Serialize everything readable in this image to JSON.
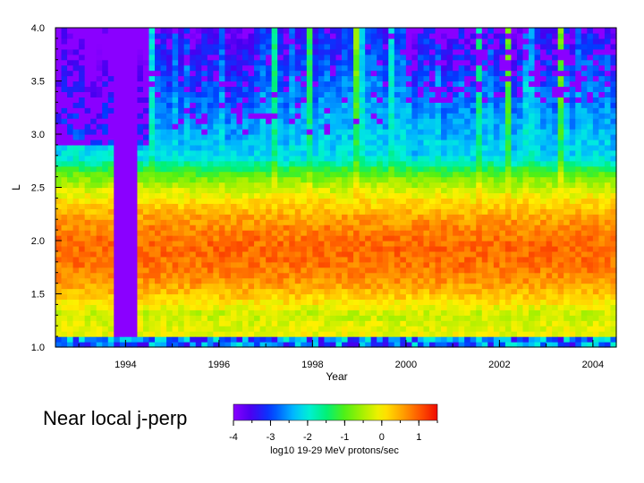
{
  "caption": "Near local j-perp",
  "chart_data": {
    "type": "heatmap",
    "xlabel": "Year",
    "ylabel": "L",
    "xlim": [
      1992.5,
      2004.5
    ],
    "ylim": [
      1.0,
      4.0
    ],
    "x_ticks": [
      1994,
      1996,
      1998,
      2000,
      2002,
      2004
    ],
    "y_ticks": [
      1.0,
      1.5,
      2.0,
      2.5,
      3.0,
      3.5,
      4.0
    ],
    "x_tick_labels": [
      "1994",
      "1996",
      "1998",
      "2000",
      "2002",
      "2004"
    ],
    "y_tick_labels": [
      "1.0",
      "1.5",
      "2.0",
      "2.5",
      "3.0",
      "3.5",
      "4.0"
    ],
    "colorbar": {
      "label": "log10 19-29 MeV protons/sec",
      "range": [
        -4,
        1.5
      ],
      "ticks": [
        -4,
        -3,
        -2,
        -1,
        0,
        1
      ],
      "tick_labels": [
        "-4",
        "-3",
        "-2",
        "-1",
        "0",
        "1"
      ]
    },
    "gap_interval_years": [
      1993.75,
      1994.25
    ],
    "peak_band_L": [
      1.6,
      2.2
    ],
    "peak_value_log10": 0.9,
    "low_L_cutoff": 1.12,
    "low_L_value_log10": -3.5,
    "background_value_log10": -4.0
  }
}
